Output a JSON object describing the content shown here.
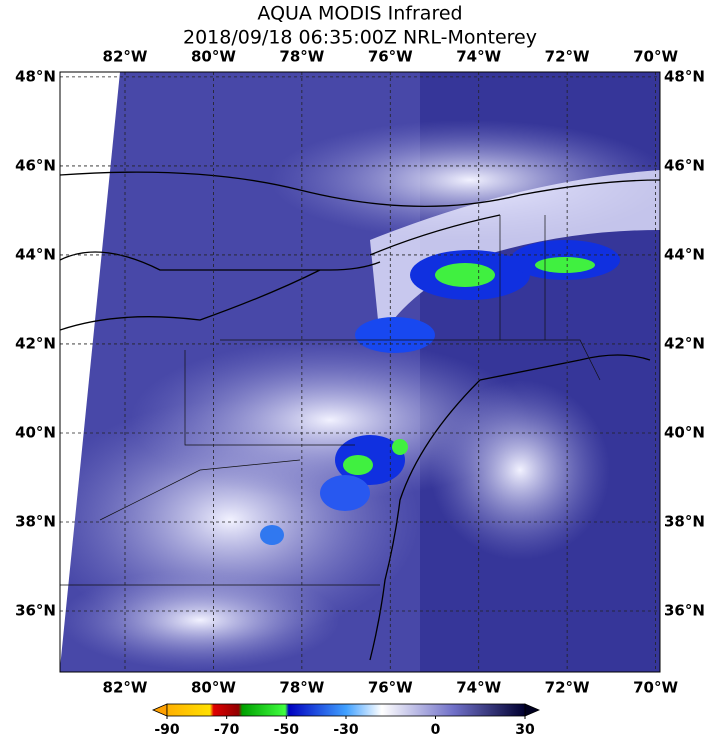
{
  "map": {
    "title": "AQUA MODIS Infrared",
    "subtitle": "2018/09/18 06:35:00Z NRL-Monterey",
    "lon_ticks": [
      {
        "value": -82,
        "label": "82°W"
      },
      {
        "value": -80,
        "label": "80°W"
      },
      {
        "value": -78,
        "label": "78°W"
      },
      {
        "value": -76,
        "label": "76°W"
      },
      {
        "value": -74,
        "label": "74°W"
      },
      {
        "value": -72,
        "label": "72°W"
      },
      {
        "value": -70,
        "label": "70°W"
      }
    ],
    "lat_ticks": [
      {
        "value": 48,
        "label": "48°N"
      },
      {
        "value": 46,
        "label": "46°N"
      },
      {
        "value": 44,
        "label": "44°N"
      },
      {
        "value": 42,
        "label": "42°N"
      },
      {
        "value": 40,
        "label": "40°N"
      },
      {
        "value": 38,
        "label": "38°N"
      },
      {
        "value": 36,
        "label": "36°N"
      }
    ],
    "lonlim": [
      -83.47,
      -69.9
    ],
    "latlim": [
      34.63,
      48.11
    ],
    "colorbar": {
      "clim": [
        -90,
        30
      ],
      "ticks": [
        -90,
        -70,
        -50,
        -30,
        0,
        30
      ]
    }
  }
}
